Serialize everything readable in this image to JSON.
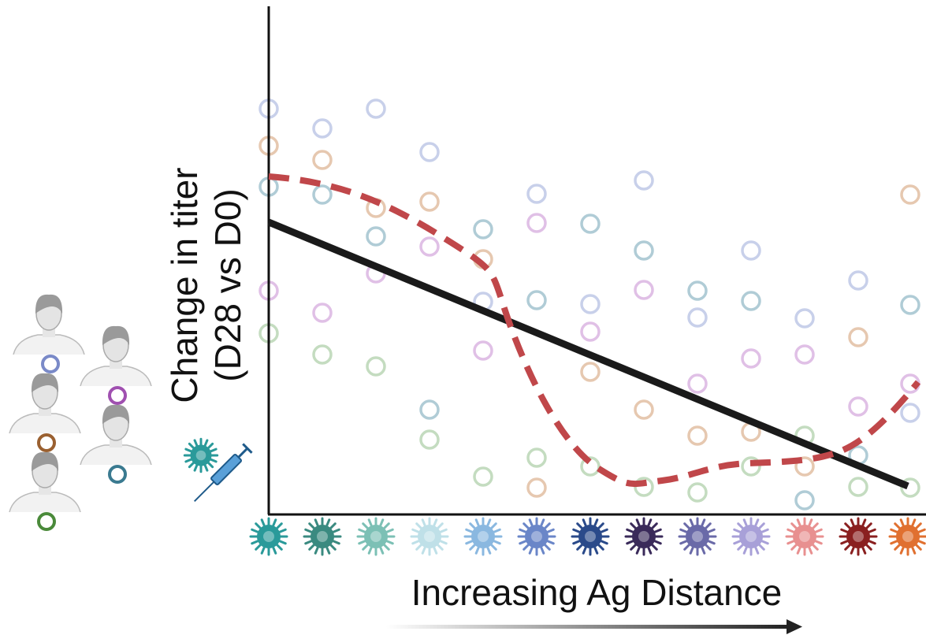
{
  "y_axis_label": {
    "line1": "Change in titer",
    "line2": "(D28 vs D0)"
  },
  "x_axis_label": "Increasing Ag Distance"
}
